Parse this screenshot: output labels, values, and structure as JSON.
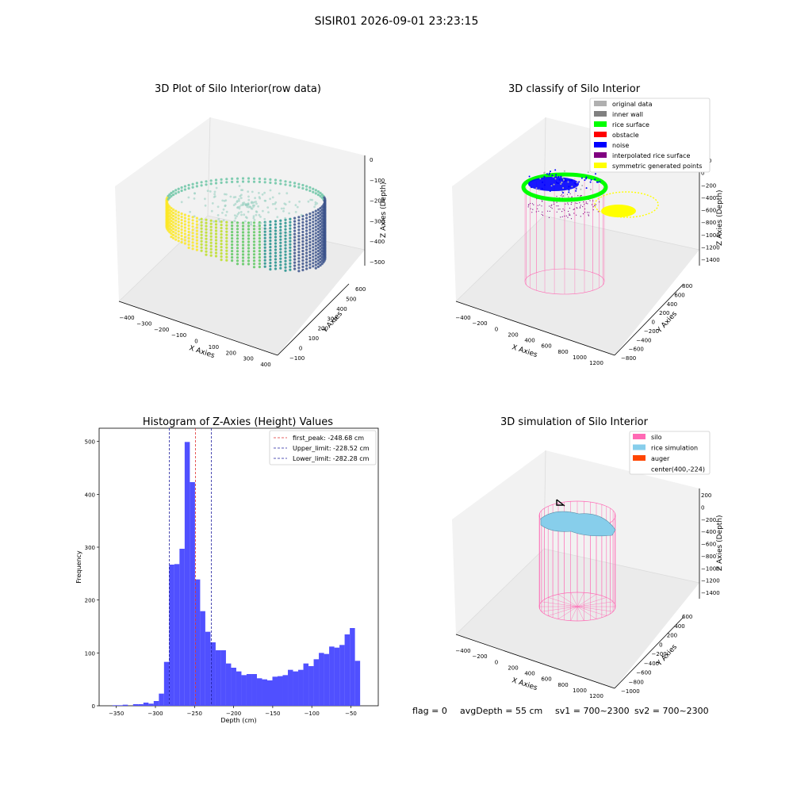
{
  "figure": {
    "suptitle": "SISIR01 2026-09-01 23:23:15",
    "status": {
      "flag": "flag = 0",
      "avg_depth": "avgDepth = 55 cm",
      "sv1": "sv1 = 700~2300",
      "sv2": "sv2 = 700~2300"
    }
  },
  "colors": {
    "hist_bar": "#5050ff",
    "first_peak": "#e03030",
    "limits": "#2020a0",
    "silo": "#ff69b4",
    "rice_sim": "#87ceeb",
    "auger": "#ff4500",
    "original": "#b0b0b0",
    "inner_wall": "#808080",
    "rice_surface": "#00ff00",
    "obstacle": "#ff0000",
    "noise": "#0000ff",
    "interpolated": "#800080",
    "symmetric": "#ffff00"
  },
  "chart_data": [
    {
      "type": "scatter3d",
      "title": "3D Plot of Silo Interior(row data)",
      "xlabel": "X Axies",
      "ylabel": "Y Axies",
      "zlabel": "Z Axies (Depth)",
      "x_ticks": [
        "−400",
        "−300",
        "−200",
        "−100",
        "0",
        "100",
        "200",
        "300",
        "400"
      ],
      "y_ticks": [
        "−100",
        "0",
        "100",
        "200",
        "300",
        "400",
        "500",
        "600"
      ],
      "z_ticks": [
        "0",
        "−100",
        "−200",
        "−300",
        "−400",
        "−500"
      ],
      "xlim": [
        -450,
        420
      ],
      "ylim": [
        -150,
        650
      ],
      "zlim": [
        -560,
        0
      ],
      "colormap": "viridis"
    },
    {
      "type": "scatter3d",
      "title": "3D classify of Silo Interior",
      "xlabel": "X Axies",
      "ylabel": "Y Axies",
      "zlabel": "Z Axies (Depth)",
      "x_ticks": [
        "−400",
        "−200",
        "0",
        "200",
        "400",
        "600",
        "800",
        "1000",
        "1200"
      ],
      "y_ticks": [
        "−800",
        "−600",
        "−400",
        "−200",
        "0",
        "200",
        "400",
        "600",
        "800"
      ],
      "z_ticks": [
        "200",
        "0",
        "−200",
        "−400",
        "−600",
        "−800",
        "−1000",
        "−1200",
        "−1400"
      ],
      "legend_position": "top-right",
      "legend": [
        {
          "label": "original data",
          "color": "#b0b0b0"
        },
        {
          "label": "inner wall",
          "color": "#808080"
        },
        {
          "label": "rice surface",
          "color": "#00ff00"
        },
        {
          "label": "obstacle",
          "color": "#ff0000"
        },
        {
          "label": "noise",
          "color": "#0000ff"
        },
        {
          "label": "interpolated rice surface",
          "color": "#800080"
        },
        {
          "label": "symmetric generated points",
          "color": "#ffff00"
        }
      ]
    },
    {
      "type": "bar",
      "title": "Histogram of Z-Axies (Height) Values",
      "xlabel": "Depth (cm)",
      "ylabel": "Frequency",
      "xlim": [
        -372,
        -15
      ],
      "ylim": [
        0,
        525
      ],
      "x_ticks": [
        -350,
        -300,
        -250,
        -200,
        -150,
        -100,
        -50
      ],
      "x_tick_labels": [
        "−350",
        "−300",
        "−250",
        "−200",
        "−150",
        "−100",
        "−50"
      ],
      "y_ticks": [
        0,
        100,
        200,
        300,
        400,
        500
      ],
      "y_tick_labels": [
        "0",
        "100",
        "200",
        "300",
        "400",
        "500"
      ],
      "bin_start": -355,
      "bin_width": 6.6,
      "values": [
        1,
        1,
        2,
        0,
        3,
        3,
        6,
        4,
        9,
        23,
        83,
        267,
        268,
        297,
        499,
        423,
        239,
        179,
        140,
        120,
        105,
        105,
        80,
        72,
        65,
        58,
        60,
        60,
        52,
        50,
        48,
        55,
        56,
        58,
        68,
        65,
        68,
        80,
        75,
        88,
        100,
        98,
        112,
        110,
        115,
        135,
        147,
        85
      ],
      "vlines": [
        {
          "x": -248.68,
          "style": "first",
          "label": "first_peak: -248.68 cm"
        },
        {
          "x": -228.52,
          "style": "limit",
          "label": "Upper_limit: -228.52 cm"
        },
        {
          "x": -282.28,
          "style": "limit",
          "label": "Lower_limit: -282.28 cm"
        }
      ],
      "legend_position": "top-right"
    },
    {
      "type": "scatter3d",
      "title": "3D simulation of Silo Interior",
      "xlabel": "X Axies",
      "ylabel": "Y Axies",
      "zlabel": "Z Axies (Depth)",
      "x_ticks": [
        "−400",
        "−200",
        "0",
        "200",
        "400",
        "600",
        "800",
        "1000",
        "1200"
      ],
      "y_ticks": [
        "−1000",
        "−800",
        "−600",
        "−400",
        "−200",
        "0",
        "200",
        "400",
        "600"
      ],
      "z_ticks": [
        "200",
        "0",
        "−200",
        "−400",
        "−600",
        "−800",
        "−1000",
        "−1200",
        "−1400"
      ],
      "legend_position": "top-right",
      "legend": [
        {
          "label": "silo",
          "color": "#ff69b4"
        },
        {
          "label": "rice simulation",
          "color": "#87ceeb"
        },
        {
          "label": "auger",
          "color": "#ff4500"
        },
        {
          "label": "center(400,-224)",
          "color": ""
        }
      ]
    }
  ]
}
